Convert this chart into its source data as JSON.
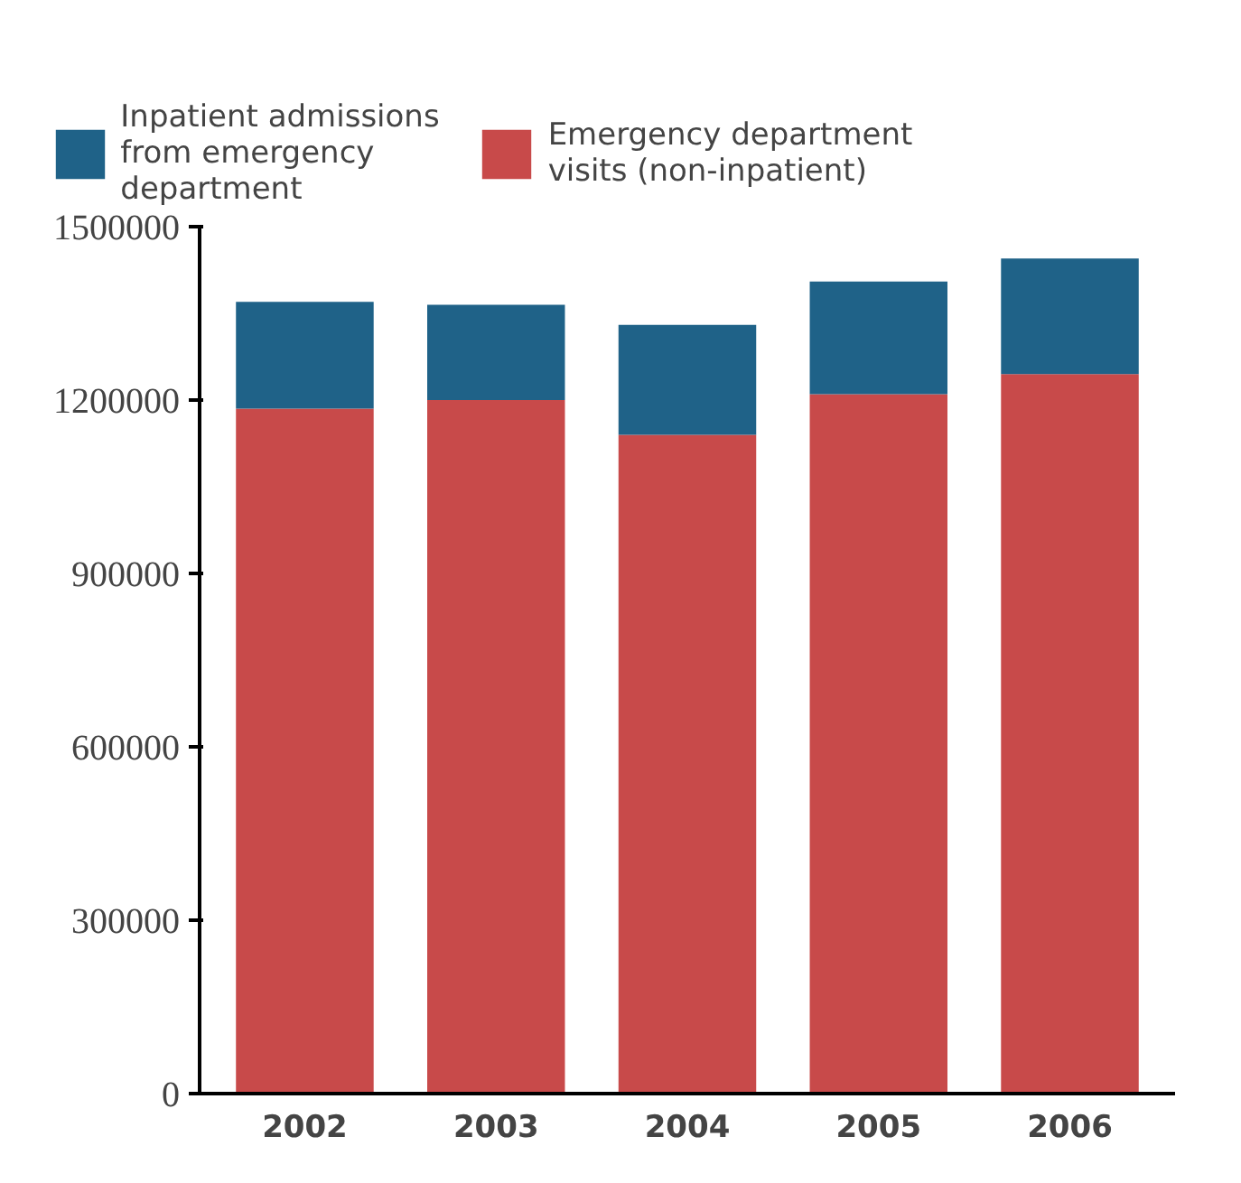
{
  "chart_data": {
    "type": "bar",
    "stacked": true,
    "categories": [
      "2002",
      "2003",
      "2004",
      "2005",
      "2006"
    ],
    "series": [
      {
        "name": "Emergency department visits (non-inpatient)",
        "color": "#c84a4a",
        "values": [
          1185000,
          1200000,
          1140000,
          1210000,
          1245000
        ]
      },
      {
        "name": "Inpatient admissions from emergency department",
        "color": "#1f6288",
        "values": [
          185000,
          165000,
          190000,
          195000,
          200000
        ]
      }
    ],
    "ylim": [
      0,
      1500000
    ],
    "yticks": [
      0,
      300000,
      600000,
      900000,
      1200000,
      1500000
    ],
    "grid": false,
    "legend": "top"
  }
}
